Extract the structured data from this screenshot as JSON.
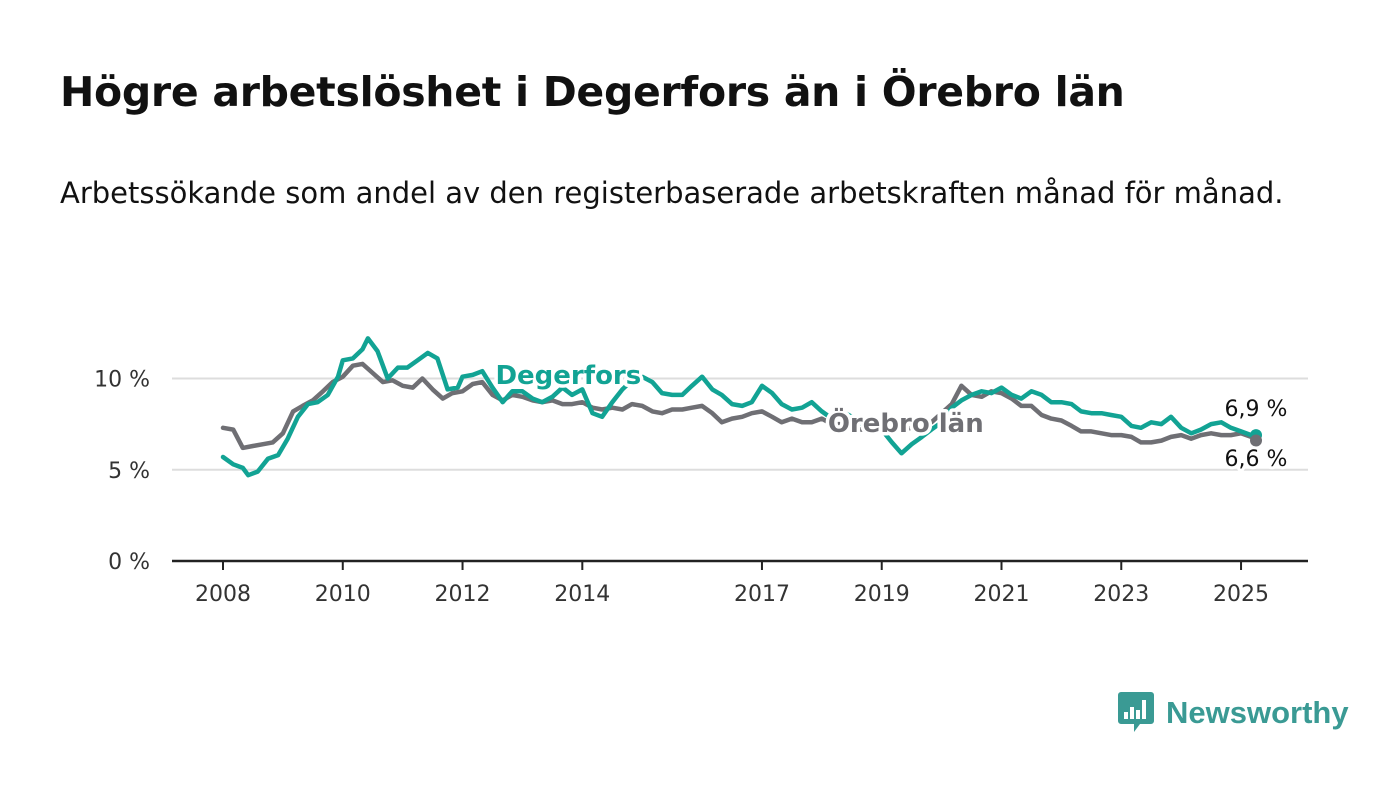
{
  "title": "Högre arbetslöshet i Degerfors än i Örebro län",
  "subtitle": "Arbetssökande som andel av den registerbaserade arbetskraften månad för månad.",
  "brand": {
    "name": "Newsworthy",
    "icon": "newsworthy-bar-chart-icon",
    "color": "#3a9a94"
  },
  "colors": {
    "degerfors": "#12a394",
    "orebro": "#6f6f74",
    "grid": "#dddddd",
    "axis": "#222222"
  },
  "chart_data": {
    "type": "line",
    "xlim": [
      2008,
      2025.35
    ],
    "ylim": [
      0,
      12
    ],
    "x_ticks": [
      {
        "value": 2008,
        "label": "2008"
      },
      {
        "value": 2010,
        "label": "2010"
      },
      {
        "value": 2012,
        "label": "2012"
      },
      {
        "value": 2014,
        "label": "2014"
      },
      {
        "value": 2017,
        "label": "2017"
      },
      {
        "value": 2019,
        "label": "2019"
      },
      {
        "value": 2021,
        "label": "2021"
      },
      {
        "value": 2023,
        "label": "2023"
      },
      {
        "value": 2025,
        "label": "2025"
      }
    ],
    "y_ticks": [
      {
        "value": 0,
        "label": "0 %"
      },
      {
        "value": 5,
        "label": "5 %"
      },
      {
        "value": 10,
        "label": "10 %"
      }
    ],
    "grid": true,
    "legend": "inline labels on lines",
    "series": [
      {
        "name": "Degerfors",
        "color": "#12a394",
        "end_label": "6,9 %",
        "points": [
          [
            2008.0,
            5.7
          ],
          [
            2008.17,
            5.3
          ],
          [
            2008.33,
            5.1
          ],
          [
            2008.42,
            4.7
          ],
          [
            2008.58,
            4.9
          ],
          [
            2008.75,
            5.6
          ],
          [
            2008.92,
            5.8
          ],
          [
            2009.08,
            6.7
          ],
          [
            2009.25,
            7.9
          ],
          [
            2009.42,
            8.6
          ],
          [
            2009.58,
            8.7
          ],
          [
            2009.75,
            9.1
          ],
          [
            2009.92,
            10.1
          ],
          [
            2010.0,
            11.0
          ],
          [
            2010.17,
            11.1
          ],
          [
            2010.33,
            11.6
          ],
          [
            2010.42,
            12.2
          ],
          [
            2010.58,
            11.5
          ],
          [
            2010.75,
            10.0
          ],
          [
            2010.92,
            10.6
          ],
          [
            2011.08,
            10.6
          ],
          [
            2011.25,
            11.0
          ],
          [
            2011.42,
            11.4
          ],
          [
            2011.58,
            11.1
          ],
          [
            2011.75,
            9.4
          ],
          [
            2011.92,
            9.5
          ],
          [
            2012.0,
            10.1
          ],
          [
            2012.17,
            10.2
          ],
          [
            2012.33,
            10.4
          ],
          [
            2012.5,
            9.5
          ],
          [
            2012.67,
            8.7
          ],
          [
            2012.83,
            9.3
          ],
          [
            2013.0,
            9.3
          ],
          [
            2013.17,
            8.9
          ],
          [
            2013.33,
            8.7
          ],
          [
            2013.5,
            9.0
          ],
          [
            2013.67,
            9.5
          ],
          [
            2013.83,
            9.1
          ],
          [
            2014.0,
            9.4
          ],
          [
            2014.17,
            8.1
          ],
          [
            2014.33,
            7.9
          ],
          [
            2014.5,
            8.7
          ],
          [
            2014.67,
            9.4
          ],
          [
            2014.83,
            9.9
          ],
          [
            2015.0,
            10.1
          ],
          [
            2015.17,
            9.8
          ],
          [
            2015.33,
            9.2
          ],
          [
            2015.5,
            9.1
          ],
          [
            2015.67,
            9.1
          ],
          [
            2015.83,
            9.6
          ],
          [
            2016.0,
            10.1
          ],
          [
            2016.17,
            9.4
          ],
          [
            2016.33,
            9.1
          ],
          [
            2016.5,
            8.6
          ],
          [
            2016.67,
            8.5
          ],
          [
            2016.83,
            8.7
          ],
          [
            2017.0,
            9.6
          ],
          [
            2017.17,
            9.2
          ],
          [
            2017.33,
            8.6
          ],
          [
            2017.5,
            8.3
          ],
          [
            2017.67,
            8.4
          ],
          [
            2017.83,
            8.7
          ],
          [
            2018.0,
            8.2
          ],
          [
            2018.17,
            7.8
          ],
          [
            2018.33,
            8.2
          ],
          [
            2018.5,
            7.9
          ],
          [
            2018.67,
            7.5
          ],
          [
            2018.83,
            7.7
          ],
          [
            2019.0,
            7.2
          ],
          [
            2019.17,
            6.5
          ],
          [
            2019.33,
            5.9
          ],
          [
            2019.5,
            6.4
          ],
          [
            2019.67,
            6.8
          ],
          [
            2019.83,
            7.2
          ],
          [
            2020.0,
            7.6
          ],
          [
            2020.17,
            8.4
          ],
          [
            2020.33,
            8.8
          ],
          [
            2020.5,
            9.1
          ],
          [
            2020.67,
            9.3
          ],
          [
            2020.83,
            9.2
          ],
          [
            2021.0,
            9.5
          ],
          [
            2021.17,
            9.1
          ],
          [
            2021.33,
            8.9
          ],
          [
            2021.5,
            9.3
          ],
          [
            2021.67,
            9.1
          ],
          [
            2021.83,
            8.7
          ],
          [
            2022.0,
            8.7
          ],
          [
            2022.17,
            8.6
          ],
          [
            2022.33,
            8.2
          ],
          [
            2022.5,
            8.1
          ],
          [
            2022.67,
            8.1
          ],
          [
            2022.83,
            8.0
          ],
          [
            2023.0,
            7.9
          ],
          [
            2023.17,
            7.4
          ],
          [
            2023.33,
            7.3
          ],
          [
            2023.5,
            7.6
          ],
          [
            2023.67,
            7.5
          ],
          [
            2023.83,
            7.9
          ],
          [
            2024.0,
            7.3
          ],
          [
            2024.17,
            7.0
          ],
          [
            2024.33,
            7.2
          ],
          [
            2024.5,
            7.5
          ],
          [
            2024.67,
            7.6
          ],
          [
            2024.83,
            7.3
          ],
          [
            2025.0,
            7.1
          ],
          [
            2025.17,
            6.9
          ],
          [
            2025.25,
            6.9
          ]
        ]
      },
      {
        "name": "Örebro län",
        "color": "#6f6f74",
        "end_label": "6,6 %",
        "points": [
          [
            2008.0,
            7.3
          ],
          [
            2008.17,
            7.2
          ],
          [
            2008.33,
            6.2
          ],
          [
            2008.5,
            6.3
          ],
          [
            2008.67,
            6.4
          ],
          [
            2008.83,
            6.5
          ],
          [
            2009.0,
            7.0
          ],
          [
            2009.17,
            8.2
          ],
          [
            2009.33,
            8.5
          ],
          [
            2009.5,
            8.8
          ],
          [
            2009.67,
            9.3
          ],
          [
            2009.83,
            9.8
          ],
          [
            2010.0,
            10.1
          ],
          [
            2010.17,
            10.7
          ],
          [
            2010.33,
            10.8
          ],
          [
            2010.5,
            10.3
          ],
          [
            2010.67,
            9.8
          ],
          [
            2010.83,
            9.9
          ],
          [
            2011.0,
            9.6
          ],
          [
            2011.17,
            9.5
          ],
          [
            2011.33,
            10.0
          ],
          [
            2011.5,
            9.4
          ],
          [
            2011.67,
            8.9
          ],
          [
            2011.83,
            9.2
          ],
          [
            2012.0,
            9.3
          ],
          [
            2012.17,
            9.7
          ],
          [
            2012.33,
            9.8
          ],
          [
            2012.5,
            9.1
          ],
          [
            2012.67,
            8.8
          ],
          [
            2012.83,
            9.1
          ],
          [
            2013.0,
            9.0
          ],
          [
            2013.17,
            8.8
          ],
          [
            2013.33,
            8.7
          ],
          [
            2013.5,
            8.8
          ],
          [
            2013.67,
            8.6
          ],
          [
            2013.83,
            8.6
          ],
          [
            2014.0,
            8.7
          ],
          [
            2014.17,
            8.4
          ],
          [
            2014.33,
            8.3
          ],
          [
            2014.5,
            8.4
          ],
          [
            2014.67,
            8.3
          ],
          [
            2014.83,
            8.6
          ],
          [
            2015.0,
            8.5
          ],
          [
            2015.17,
            8.2
          ],
          [
            2015.33,
            8.1
          ],
          [
            2015.5,
            8.3
          ],
          [
            2015.67,
            8.3
          ],
          [
            2015.83,
            8.4
          ],
          [
            2016.0,
            8.5
          ],
          [
            2016.17,
            8.1
          ],
          [
            2016.33,
            7.6
          ],
          [
            2016.5,
            7.8
          ],
          [
            2016.67,
            7.9
          ],
          [
            2016.83,
            8.1
          ],
          [
            2017.0,
            8.2
          ],
          [
            2017.17,
            7.9
          ],
          [
            2017.33,
            7.6
          ],
          [
            2017.5,
            7.8
          ],
          [
            2017.67,
            7.6
          ],
          [
            2017.83,
            7.6
          ],
          [
            2018.0,
            7.8
          ],
          [
            2018.17,
            7.5
          ],
          [
            2018.33,
            7.5
          ],
          [
            2018.5,
            7.3
          ],
          [
            2018.67,
            7.2
          ],
          [
            2018.83,
            7.3
          ],
          [
            2019.0,
            7.4
          ],
          [
            2019.17,
            7.3
          ],
          [
            2019.33,
            7.2
          ],
          [
            2019.5,
            7.3
          ],
          [
            2019.67,
            7.4
          ],
          [
            2019.83,
            7.6
          ],
          [
            2020.0,
            8.1
          ],
          [
            2020.17,
            8.6
          ],
          [
            2020.33,
            9.6
          ],
          [
            2020.5,
            9.1
          ],
          [
            2020.67,
            9.0
          ],
          [
            2020.83,
            9.3
          ],
          [
            2021.0,
            9.2
          ],
          [
            2021.17,
            8.9
          ],
          [
            2021.33,
            8.5
          ],
          [
            2021.5,
            8.5
          ],
          [
            2021.67,
            8.0
          ],
          [
            2021.83,
            7.8
          ],
          [
            2022.0,
            7.7
          ],
          [
            2022.17,
            7.4
          ],
          [
            2022.33,
            7.1
          ],
          [
            2022.5,
            7.1
          ],
          [
            2022.67,
            7.0
          ],
          [
            2022.83,
            6.9
          ],
          [
            2023.0,
            6.9
          ],
          [
            2023.17,
            6.8
          ],
          [
            2023.33,
            6.5
          ],
          [
            2023.5,
            6.5
          ],
          [
            2023.67,
            6.6
          ],
          [
            2023.83,
            6.8
          ],
          [
            2024.0,
            6.9
          ],
          [
            2024.17,
            6.7
          ],
          [
            2024.33,
            6.9
          ],
          [
            2024.5,
            7.0
          ],
          [
            2024.67,
            6.9
          ],
          [
            2024.83,
            6.9
          ],
          [
            2025.0,
            7.0
          ],
          [
            2025.17,
            6.8
          ],
          [
            2025.25,
            6.6
          ]
        ]
      }
    ]
  }
}
